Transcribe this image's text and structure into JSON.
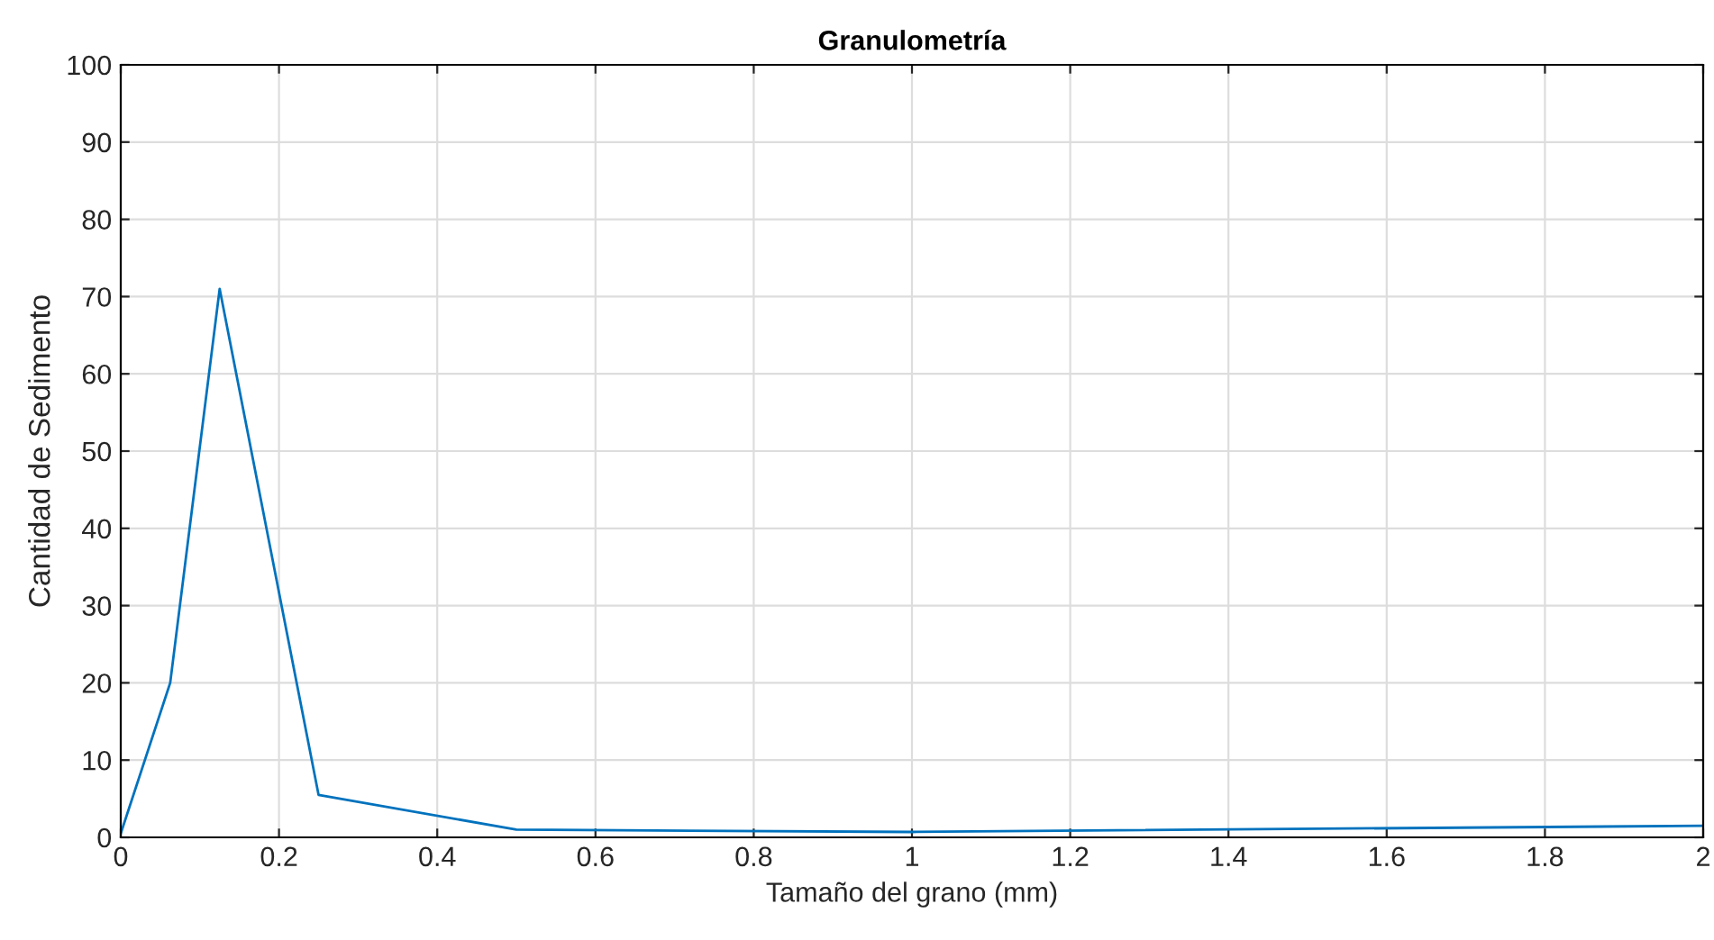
{
  "chart_data": {
    "type": "line",
    "title": "Granulometría",
    "xlabel": "Tamaño del grano (mm)",
    "ylabel": "Cantidad de Sedimento",
    "series": [
      {
        "color": "#0072bd",
        "x": [
          0,
          0.0625,
          0.125,
          0.25,
          0.5,
          1,
          2
        ],
        "values": [
          0.5,
          20,
          71,
          5.5,
          1,
          0.7,
          1.5
        ]
      }
    ],
    "xlim": [
      0,
      2
    ],
    "xticks": [
      0,
      0.2,
      0.4,
      0.6,
      0.8,
      1,
      1.2,
      1.4,
      1.6,
      1.8,
      2
    ],
    "ylim": [
      0,
      100
    ],
    "yticks": [
      0,
      10,
      20,
      30,
      40,
      50,
      60,
      70,
      80,
      90,
      100
    ],
    "grid": true,
    "marker": "none",
    "line_style": "solid"
  }
}
